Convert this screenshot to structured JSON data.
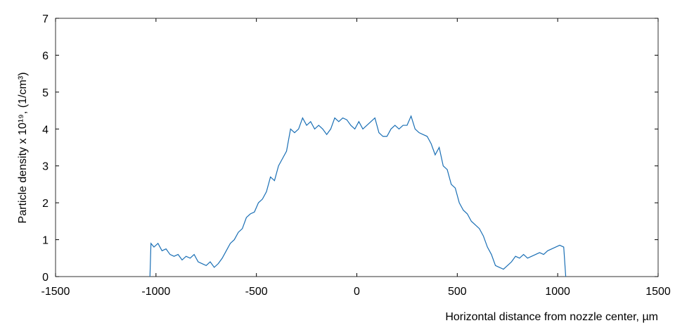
{
  "chart_data": {
    "type": "line",
    "xlabel": "Horizontal distance from nozzle center, µm",
    "ylabel": "Particle density x 10¹⁹, (1/cm³)",
    "xlim": [
      -1500,
      1500
    ],
    "xticks": [
      -1500,
      -1000,
      -500,
      0,
      500,
      1000,
      1500
    ],
    "ylim": [
      0,
      7
    ],
    "yticks": [
      0,
      1,
      2,
      3,
      4,
      5,
      6,
      7
    ],
    "grid": false,
    "series": [
      {
        "color": "#1a6fb5",
        "x": [
          -1030,
          -1025,
          -1010,
          -990,
          -970,
          -950,
          -930,
          -910,
          -890,
          -870,
          -850,
          -830,
          -810,
          -790,
          -770,
          -750,
          -730,
          -710,
          -690,
          -670,
          -650,
          -630,
          -610,
          -590,
          -570,
          -550,
          -530,
          -510,
          -490,
          -470,
          -450,
          -430,
          -410,
          -390,
          -370,
          -350,
          -330,
          -310,
          -290,
          -270,
          -250,
          -230,
          -210,
          -190,
          -170,
          -150,
          -130,
          -110,
          -90,
          -70,
          -50,
          -30,
          -10,
          10,
          30,
          50,
          70,
          90,
          110,
          130,
          150,
          170,
          190,
          210,
          230,
          250,
          270,
          290,
          310,
          330,
          350,
          370,
          390,
          410,
          430,
          450,
          470,
          490,
          510,
          530,
          550,
          570,
          590,
          610,
          630,
          650,
          670,
          690,
          710,
          730,
          750,
          770,
          790,
          810,
          830,
          850,
          870,
          890,
          910,
          930,
          950,
          970,
          990,
          1010,
          1030,
          1040
        ],
        "values": [
          0,
          0.9,
          0.8,
          0.9,
          0.7,
          0.75,
          0.6,
          0.55,
          0.6,
          0.45,
          0.55,
          0.5,
          0.6,
          0.4,
          0.35,
          0.3,
          0.4,
          0.25,
          0.35,
          0.5,
          0.7,
          0.9,
          1.0,
          1.2,
          1.3,
          1.6,
          1.7,
          1.75,
          2.0,
          2.1,
          2.3,
          2.7,
          2.6,
          3.0,
          3.2,
          3.4,
          4.0,
          3.9,
          4.0,
          4.3,
          4.1,
          4.2,
          4.0,
          4.1,
          4.0,
          3.85,
          4.0,
          4.3,
          4.2,
          4.3,
          4.25,
          4.1,
          4.0,
          4.2,
          4.0,
          4.1,
          4.2,
          4.3,
          3.9,
          3.8,
          3.8,
          4.0,
          4.1,
          4.0,
          4.1,
          4.1,
          4.35,
          4.0,
          3.9,
          3.85,
          3.8,
          3.6,
          3.3,
          3.5,
          3.0,
          2.9,
          2.5,
          2.4,
          2.0,
          1.8,
          1.7,
          1.5,
          1.4,
          1.3,
          1.1,
          0.8,
          0.6,
          0.3,
          0.25,
          0.2,
          0.3,
          0.4,
          0.55,
          0.5,
          0.6,
          0.5,
          0.55,
          0.6,
          0.65,
          0.6,
          0.7,
          0.75,
          0.8,
          0.85,
          0.8,
          0
        ]
      }
    ]
  }
}
